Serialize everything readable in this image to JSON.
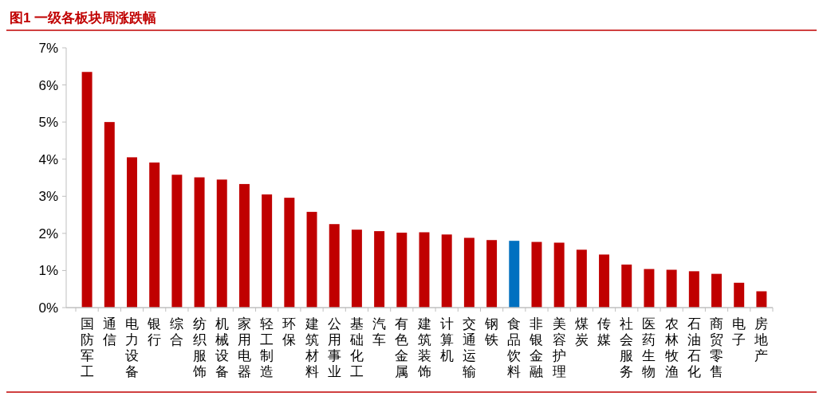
{
  "chart_data": {
    "type": "bar",
    "title": "图1 一级各板块周涨跌幅",
    "categories": [
      "国防军工",
      "通信",
      "电力设备",
      "银行",
      "综合",
      "纺织服饰",
      "机械设备",
      "家用电器",
      "轻工制造",
      "环保",
      "建筑材料",
      "公用事业",
      "基础化工",
      "汽车",
      "有色金属",
      "建筑装饰",
      "计算机",
      "交通运输",
      "钢铁",
      "食品饮料",
      "非银金融",
      "美容护理",
      "煤炭",
      "传媒",
      "社会服务",
      "医药生物",
      "农林牧渔",
      "石油石化",
      "商贸零售",
      "电子",
      "房地产"
    ],
    "values": [
      6.35,
      5.0,
      4.05,
      3.91,
      3.58,
      3.51,
      3.45,
      3.33,
      3.05,
      2.96,
      2.58,
      2.25,
      2.1,
      2.06,
      2.02,
      2.03,
      1.97,
      1.88,
      1.82,
      1.8,
      1.77,
      1.75,
      1.56,
      1.43,
      1.16,
      1.04,
      1.02,
      0.98,
      0.91,
      0.67,
      0.44
    ],
    "colors": [
      "#c00000",
      "#c00000",
      "#c00000",
      "#c00000",
      "#c00000",
      "#c00000",
      "#c00000",
      "#c00000",
      "#c00000",
      "#c00000",
      "#c00000",
      "#c00000",
      "#c00000",
      "#c00000",
      "#c00000",
      "#c00000",
      "#c00000",
      "#c00000",
      "#c00000",
      "#0070c0",
      "#c00000",
      "#c00000",
      "#c00000",
      "#c00000",
      "#c00000",
      "#c00000",
      "#c00000",
      "#c00000",
      "#c00000",
      "#c00000",
      "#c00000"
    ],
    "ylim": [
      0,
      7
    ],
    "yticks": [
      {
        "value": 0,
        "label": "0%"
      },
      {
        "value": 1,
        "label": "1%"
      },
      {
        "value": 2,
        "label": "2%"
      },
      {
        "value": 3,
        "label": "3%"
      },
      {
        "value": 4,
        "label": "4%"
      },
      {
        "value": 5,
        "label": "5%"
      },
      {
        "value": 6,
        "label": "6%"
      },
      {
        "value": 7,
        "label": "7%"
      }
    ]
  }
}
